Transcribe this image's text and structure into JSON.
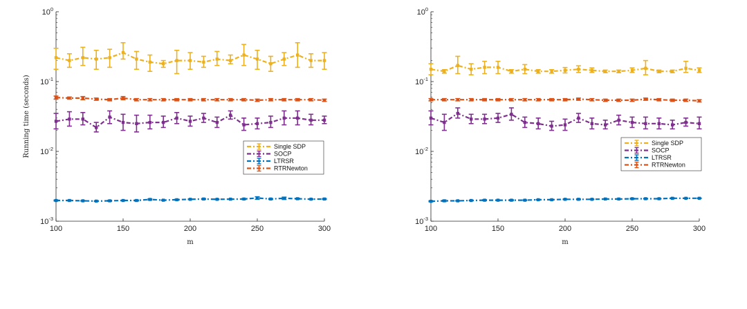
{
  "chart_data": [
    {
      "type": "line",
      "title": "",
      "xlabel": "m",
      "ylabel": "Running time (seconds)",
      "yscale": "log",
      "xlim": [
        100,
        300
      ],
      "ylim": [
        0.001,
        1
      ],
      "xticks": [
        "100",
        "150",
        "200",
        "250",
        "300"
      ],
      "yticks": [
        {
          "base": "10",
          "exp": "0"
        },
        {
          "base": "10",
          "exp": "-1"
        },
        {
          "base": "10",
          "exp": "-2"
        },
        {
          "base": "10",
          "exp": "-3"
        }
      ],
      "legend_position": "middle-right",
      "x": [
        100,
        110,
        120,
        130,
        140,
        150,
        160,
        170,
        180,
        190,
        200,
        210,
        220,
        230,
        240,
        250,
        260,
        270,
        280,
        290,
        300
      ],
      "series": [
        {
          "name": "Single SDP",
          "color": "#EDB120",
          "errorbar": true,
          "values": [
            0.22,
            0.2,
            0.22,
            0.21,
            0.22,
            0.26,
            0.21,
            0.19,
            0.18,
            0.2,
            0.2,
            0.19,
            0.21,
            0.2,
            0.24,
            0.21,
            0.18,
            0.21,
            0.24,
            0.2,
            0.2
          ],
          "err_low": [
            0.07,
            0.04,
            0.05,
            0.06,
            0.06,
            0.05,
            0.06,
            0.05,
            0.02,
            0.07,
            0.05,
            0.03,
            0.04,
            0.02,
            0.07,
            0.06,
            0.04,
            0.04,
            0.08,
            0.04,
            0.05
          ],
          "err_high": [
            0.08,
            0.05,
            0.09,
            0.07,
            0.07,
            0.1,
            0.06,
            0.05,
            0.02,
            0.08,
            0.06,
            0.04,
            0.06,
            0.04,
            0.1,
            0.07,
            0.05,
            0.05,
            0.12,
            0.05,
            0.06
          ]
        },
        {
          "name": "SOCP",
          "color": "#7E2F8E",
          "errorbar": true,
          "values": [
            0.027,
            0.029,
            0.029,
            0.022,
            0.031,
            0.026,
            0.025,
            0.026,
            0.026,
            0.03,
            0.027,
            0.03,
            0.026,
            0.033,
            0.024,
            0.025,
            0.026,
            0.03,
            0.03,
            0.028,
            0.028
          ],
          "err_low": [
            0.006,
            0.006,
            0.005,
            0.003,
            0.006,
            0.006,
            0.006,
            0.005,
            0.004,
            0.005,
            0.004,
            0.004,
            0.004,
            0.004,
            0.004,
            0.004,
            0.004,
            0.006,
            0.006,
            0.004,
            0.003
          ],
          "err_high": [
            0.008,
            0.008,
            0.007,
            0.004,
            0.007,
            0.008,
            0.008,
            0.007,
            0.006,
            0.006,
            0.005,
            0.005,
            0.005,
            0.005,
            0.006,
            0.005,
            0.006,
            0.008,
            0.008,
            0.006,
            0.004
          ]
        },
        {
          "name": "LTRSR",
          "color": "#0072BD",
          "errorbar": true,
          "values": [
            0.00198,
            0.00198,
            0.00196,
            0.00194,
            0.00196,
            0.00198,
            0.00198,
            0.00205,
            0.002,
            0.00203,
            0.00206,
            0.00208,
            0.00206,
            0.00207,
            0.00208,
            0.00215,
            0.00208,
            0.00213,
            0.0021,
            0.00207,
            0.00208
          ],
          "err_low": [
            3e-05,
            2e-05,
            2e-05,
            2e-05,
            3e-05,
            2e-05,
            3e-05,
            4e-05,
            2e-05,
            3e-05,
            2e-05,
            3e-05,
            2e-05,
            2e-05,
            3e-05,
            9e-05,
            3e-05,
            8e-05,
            3e-05,
            2e-05,
            3e-05
          ],
          "err_high": [
            3e-05,
            2e-05,
            2e-05,
            2e-05,
            3e-05,
            2e-05,
            3e-05,
            4e-05,
            2e-05,
            3e-05,
            2e-05,
            3e-05,
            2e-05,
            2e-05,
            3e-05,
            9e-05,
            3e-05,
            8e-05,
            3e-05,
            2e-05,
            3e-05
          ]
        },
        {
          "name": "RTRNewton",
          "color": "#D95319",
          "errorbar": true,
          "values": [
            0.059,
            0.058,
            0.058,
            0.056,
            0.055,
            0.058,
            0.055,
            0.055,
            0.055,
            0.055,
            0.055,
            0.055,
            0.055,
            0.055,
            0.055,
            0.054,
            0.055,
            0.055,
            0.055,
            0.055,
            0.054
          ],
          "err_low": [
            0.003,
            0.002,
            0.003,
            0.002,
            0.002,
            0.003,
            0.002,
            0.002,
            0.002,
            0.002,
            0.002,
            0.002,
            0.002,
            0.002,
            0.002,
            0.002,
            0.002,
            0.002,
            0.002,
            0.002,
            0.002
          ],
          "err_high": [
            0.003,
            0.002,
            0.003,
            0.002,
            0.002,
            0.003,
            0.002,
            0.002,
            0.002,
            0.002,
            0.002,
            0.002,
            0.002,
            0.002,
            0.002,
            0.002,
            0.002,
            0.002,
            0.002,
            0.002,
            0.002
          ]
        }
      ]
    },
    {
      "type": "line",
      "title": "",
      "xlabel": "m",
      "ylabel": "",
      "yscale": "log",
      "xlim": [
        100,
        300
      ],
      "ylim": [
        0.001,
        1
      ],
      "xticks": [
        "100",
        "150",
        "200",
        "250",
        "300"
      ],
      "yticks": [
        {
          "base": "10",
          "exp": "0"
        },
        {
          "base": "10",
          "exp": "-1"
        },
        {
          "base": "10",
          "exp": "-2"
        },
        {
          "base": "10",
          "exp": "-3"
        }
      ],
      "legend_position": "middle-right",
      "x": [
        100,
        110,
        120,
        130,
        140,
        150,
        160,
        170,
        180,
        190,
        200,
        210,
        220,
        230,
        240,
        250,
        260,
        270,
        280,
        290,
        300
      ],
      "series": [
        {
          "name": "Single SDP",
          "color": "#EDB120",
          "errorbar": true,
          "values": [
            0.15,
            0.14,
            0.17,
            0.15,
            0.16,
            0.16,
            0.14,
            0.15,
            0.14,
            0.14,
            0.145,
            0.15,
            0.145,
            0.14,
            0.14,
            0.145,
            0.155,
            0.14,
            0.14,
            0.155,
            0.145
          ],
          "err_low": [
            0.025,
            0.008,
            0.04,
            0.025,
            0.03,
            0.03,
            0.008,
            0.02,
            0.008,
            0.008,
            0.012,
            0.015,
            0.01,
            0.006,
            0.006,
            0.01,
            0.03,
            0.006,
            0.006,
            0.02,
            0.01
          ],
          "err_high": [
            0.03,
            0.008,
            0.06,
            0.03,
            0.035,
            0.035,
            0.008,
            0.025,
            0.008,
            0.008,
            0.014,
            0.018,
            0.012,
            0.006,
            0.006,
            0.012,
            0.045,
            0.006,
            0.006,
            0.04,
            0.012
          ]
        },
        {
          "name": "SOCP",
          "color": "#7E2F8E",
          "errorbar": true,
          "values": [
            0.03,
            0.026,
            0.035,
            0.029,
            0.029,
            0.03,
            0.034,
            0.026,
            0.025,
            0.023,
            0.024,
            0.03,
            0.025,
            0.024,
            0.028,
            0.026,
            0.025,
            0.025,
            0.024,
            0.026,
            0.025
          ],
          "err_low": [
            0.006,
            0.006,
            0.005,
            0.004,
            0.004,
            0.004,
            0.006,
            0.004,
            0.004,
            0.003,
            0.004,
            0.004,
            0.004,
            0.003,
            0.004,
            0.004,
            0.004,
            0.004,
            0.003,
            0.003,
            0.004
          ],
          "err_high": [
            0.008,
            0.008,
            0.007,
            0.005,
            0.005,
            0.005,
            0.008,
            0.005,
            0.005,
            0.004,
            0.005,
            0.005,
            0.005,
            0.004,
            0.005,
            0.005,
            0.006,
            0.005,
            0.004,
            0.004,
            0.006
          ]
        },
        {
          "name": "LTRSR",
          "color": "#0072BD",
          "errorbar": true,
          "values": [
            0.00193,
            0.00196,
            0.00196,
            0.00198,
            0.002,
            0.002,
            0.002,
            0.002,
            0.00203,
            0.00203,
            0.00206,
            0.00206,
            0.00206,
            0.00208,
            0.00208,
            0.0021,
            0.0021,
            0.0021,
            0.00213,
            0.00213,
            0.00213
          ],
          "err_low": [
            3e-05,
            4e-05,
            2e-05,
            2e-05,
            3e-05,
            2e-05,
            3e-05,
            2e-05,
            2e-05,
            2e-05,
            2e-05,
            3e-05,
            2e-05,
            2e-05,
            2e-05,
            3e-05,
            2e-05,
            2e-05,
            3e-05,
            2e-05,
            2e-05
          ],
          "err_high": [
            3e-05,
            4e-05,
            2e-05,
            2e-05,
            3e-05,
            2e-05,
            3e-05,
            2e-05,
            2e-05,
            2e-05,
            2e-05,
            3e-05,
            2e-05,
            2e-05,
            2e-05,
            3e-05,
            2e-05,
            2e-05,
            3e-05,
            2e-05,
            2e-05
          ]
        },
        {
          "name": "RTRNewton",
          "color": "#D95319",
          "errorbar": true,
          "values": [
            0.055,
            0.055,
            0.055,
            0.055,
            0.055,
            0.055,
            0.055,
            0.055,
            0.055,
            0.055,
            0.055,
            0.056,
            0.055,
            0.054,
            0.054,
            0.054,
            0.056,
            0.055,
            0.054,
            0.054,
            0.053
          ],
          "err_low": [
            0.002,
            0.002,
            0.002,
            0.002,
            0.002,
            0.002,
            0.002,
            0.002,
            0.002,
            0.002,
            0.002,
            0.002,
            0.002,
            0.002,
            0.002,
            0.002,
            0.002,
            0.002,
            0.002,
            0.002,
            0.002
          ],
          "err_high": [
            0.002,
            0.002,
            0.002,
            0.002,
            0.002,
            0.002,
            0.002,
            0.002,
            0.002,
            0.002,
            0.002,
            0.002,
            0.002,
            0.002,
            0.002,
            0.002,
            0.002,
            0.002,
            0.002,
            0.002,
            0.002
          ]
        }
      ]
    }
  ]
}
